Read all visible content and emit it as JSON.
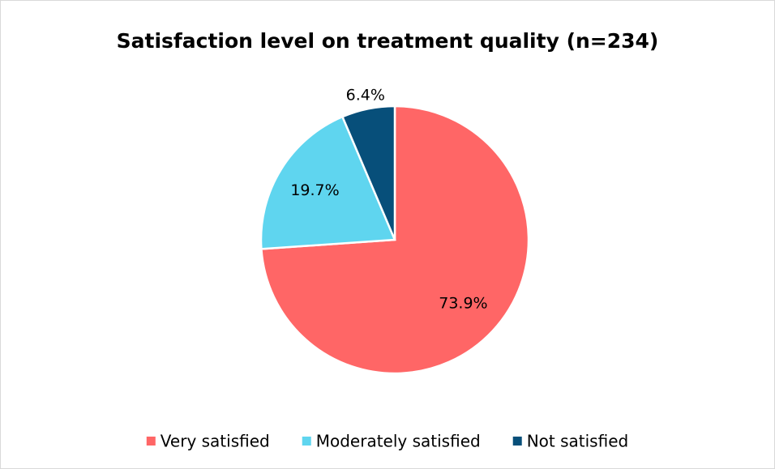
{
  "chart_data": {
    "type": "pie",
    "title": "Satisfaction level on treatment quality (n=234)",
    "categories": [
      "Very satisfied",
      "Moderately satisfied",
      "Not satisfied"
    ],
    "values": [
      73.9,
      19.7,
      6.4
    ],
    "value_labels": [
      "73.9%",
      "19.7%",
      "6.4%"
    ],
    "colors": [
      "#ff6666",
      "#5fd5ef",
      "#074f7a"
    ],
    "legend": "bottom"
  }
}
